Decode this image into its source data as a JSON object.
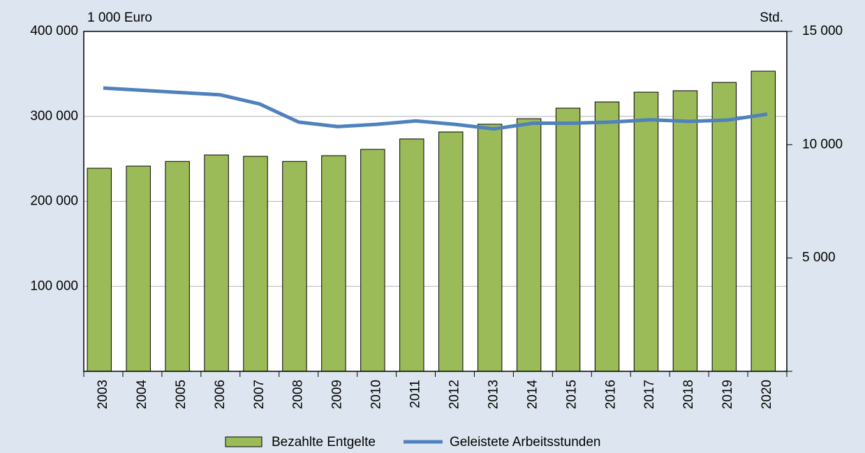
{
  "chart_data": {
    "type": "bar",
    "y_unit": "1 000 Euro",
    "y2_unit": "Std.",
    "categories": [
      "2003",
      "2004",
      "2005",
      "2006",
      "2007",
      "2008",
      "2009",
      "2010",
      "2011",
      "2012",
      "2013",
      "2014",
      "2015",
      "2016",
      "2017",
      "2018",
      "2019",
      "2020"
    ],
    "series": [
      {
        "name": "Bezahlte Entgelte",
        "type": "bar",
        "color": "#9bbb59",
        "values": [
          239000,
          241500,
          247000,
          254600,
          253000,
          247000,
          253800,
          261200,
          273500,
          281700,
          290800,
          297300,
          309700,
          317000,
          328500,
          330200,
          340000,
          353200
        ]
      },
      {
        "name": "Geleistete Arbeitsstunden",
        "type": "line",
        "axis": "y2",
        "color": "#4f81bd",
        "values": [
          12500,
          12400,
          12300,
          12200,
          11800,
          11000,
          10800,
          10900,
          11050,
          10900,
          10700,
          10950,
          10950,
          11000,
          11100,
          11030,
          11090,
          11350
        ]
      }
    ],
    "ylim": [
      0,
      400000
    ],
    "yticks": [
      {
        "value": 100000,
        "label": "100 000"
      },
      {
        "value": 200000,
        "label": "200 000"
      },
      {
        "value": 300000,
        "label": "300 000"
      },
      {
        "value": 400000,
        "label": "400 000"
      }
    ],
    "y2lim": [
      0,
      15000
    ],
    "y2ticks": [
      {
        "value": 5000,
        "label": "5 000"
      },
      {
        "value": 10000,
        "label": "10 000"
      },
      {
        "value": 15000,
        "label": "15 000"
      }
    ],
    "grid": true
  }
}
